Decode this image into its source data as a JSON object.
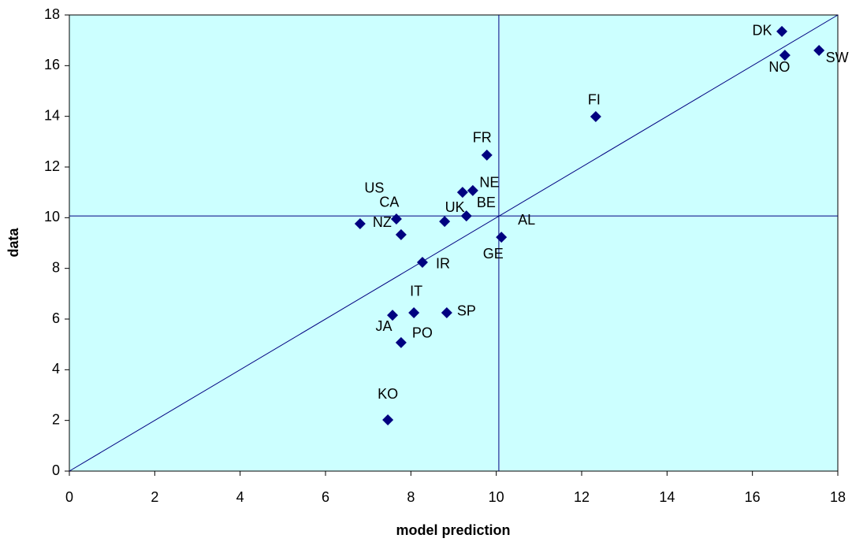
{
  "chart_data": {
    "type": "scatter",
    "x_label": "model prediction",
    "y_label": "data",
    "point_labels": [
      "DK",
      "NO",
      "SW",
      "FI",
      "FR",
      "NE",
      "US",
      "CA",
      "NZ",
      "BE",
      "UK",
      "AL",
      "GE",
      "IR",
      "IT",
      "SP",
      "JA",
      "PO",
      "KO"
    ],
    "x": [
      16.69,
      16.76,
      17.56,
      12.33,
      9.78,
      9.45,
      7.66,
      7.77,
      6.81,
      9.21,
      8.79,
      10.12,
      9.3,
      8.27,
      8.07,
      8.84,
      7.57,
      7.77,
      7.46
    ],
    "values": [
      17.35,
      16.41,
      16.6,
      13.99,
      12.47,
      11.07,
      9.95,
      9.33,
      9.76,
      11.0,
      9.85,
      9.23,
      10.07,
      8.24,
      6.25,
      6.25,
      6.15,
      5.07,
      2.02
    ],
    "color": "#000080",
    "vline": 10.06,
    "hline": 10.07,
    "diagonal": true,
    "xlim": [
      0,
      18
    ],
    "ylim": [
      0,
      18
    ],
    "xticks": [
      0,
      2,
      4,
      6,
      8,
      10,
      12,
      14,
      16,
      18
    ],
    "yticks": [
      0,
      2,
      4,
      6,
      8,
      10,
      12,
      14,
      16,
      18
    ],
    "plot_background": "#ccffff"
  }
}
